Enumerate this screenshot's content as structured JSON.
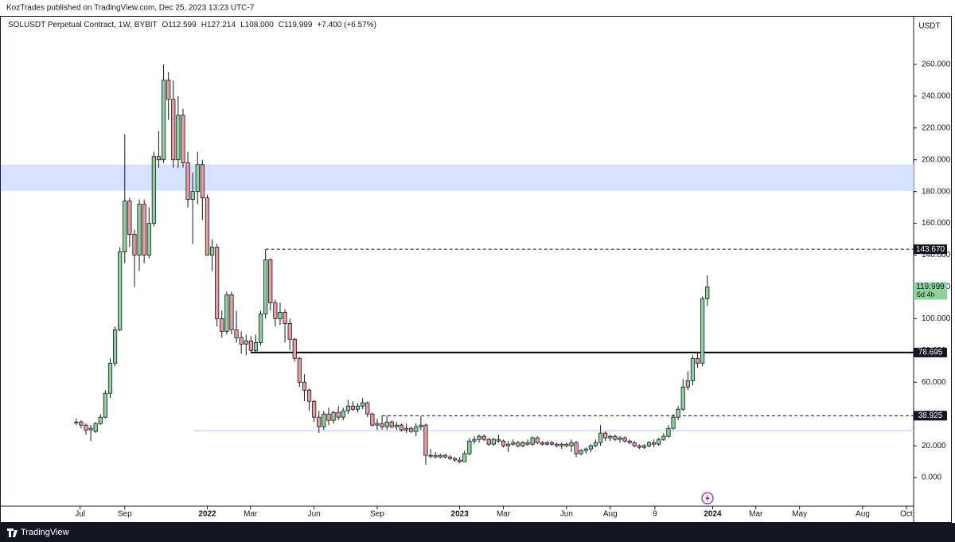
{
  "published": "KozTrades published on TradingView.com, Dec 25, 2023 13:23 UTC-7",
  "brand": "TradingView",
  "chart_data": {
    "type": "candlestick",
    "header": {
      "symbol": "SOLUSDT Perpetual Contract, 1W, BYBIT",
      "open": "O112.599",
      "high": "H127.214",
      "low": "L108.000",
      "close": "C119.999",
      "change": "+7.400 (+6.57%)"
    },
    "y_axis_label": "USDT",
    "categories": [
      null,
      null,
      null,
      null,
      null,
      null,
      null,
      null,
      null,
      null,
      null,
      null,
      null,
      null,
      null,
      null,
      null,
      null,
      null,
      null,
      null,
      null,
      null,
      null,
      null,
      null,
      null,
      null,
      null,
      null,
      null,
      null,
      null,
      null,
      null,
      null,
      null,
      null,
      null,
      null,
      null,
      null,
      null,
      null,
      null,
      null,
      null,
      null,
      null,
      null,
      null,
      null,
      null,
      null,
      null,
      null,
      null,
      null,
      null,
      null,
      null,
      null,
      null,
      null,
      null,
      null,
      null,
      null,
      null,
      null,
      null,
      null,
      null,
      null,
      null,
      null,
      null,
      null,
      null,
      null,
      null,
      null,
      null,
      null,
      null,
      null,
      null,
      null,
      null,
      null,
      null,
      null,
      null,
      null,
      null,
      null,
      null,
      null,
      null,
      null,
      null,
      null,
      null,
      null,
      null,
      null,
      null,
      null,
      null,
      null,
      null,
      null,
      null,
      null,
      null,
      null,
      null,
      null,
      null,
      null,
      null,
      null,
      null,
      null,
      null,
      null,
      null,
      null,
      null,
      null,
      null
    ],
    "open": [
      35,
      35,
      33,
      30,
      29,
      34,
      38,
      53,
      72,
      93,
      142,
      174,
      153,
      140,
      172,
      140,
      160,
      202,
      200,
      250,
      238,
      200,
      228,
      198,
      175,
      180,
      197,
      176,
      140,
      145,
      100,
      92,
      115,
      93,
      88,
      84,
      86,
      80,
      85,
      103,
      137,
      110,
      100,
      104,
      97,
      87,
      75,
      60,
      55,
      48,
      38,
      32,
      40,
      36,
      41,
      38,
      42,
      45,
      43,
      45,
      47,
      40,
      33,
      34,
      32,
      35,
      32,
      33,
      30,
      31,
      29,
      32,
      33,
      14,
      14,
      13,
      14,
      13,
      12,
      11,
      10,
      15,
      23,
      24,
      26,
      24,
      21,
      24,
      23,
      20,
      21,
      22,
      20,
      22,
      21,
      25,
      22,
      21,
      22,
      21,
      20,
      21,
      20,
      22,
      15,
      17,
      18,
      20,
      22,
      28,
      25,
      26,
      24,
      25,
      23,
      22,
      20,
      19,
      20,
      22,
      21,
      24,
      26,
      31,
      38,
      43,
      57,
      61,
      75,
      72,
      112.599
    ],
    "high": [
      37,
      36,
      34,
      33,
      35,
      40,
      55,
      75,
      95,
      145,
      216,
      176,
      156,
      175,
      175,
      170,
      205,
      218,
      260,
      255,
      250,
      240,
      232,
      205,
      192,
      205,
      200,
      178,
      150,
      147,
      105,
      117,
      117,
      105,
      92,
      90,
      89,
      90,
      105,
      143.67,
      138,
      112,
      110,
      106,
      100,
      88,
      76,
      65,
      56,
      49,
      42,
      42,
      44,
      42,
      45,
      44,
      49,
      48,
      47,
      50,
      48,
      41,
      37,
      38.925,
      39,
      36,
      35,
      34,
      34,
      32,
      34,
      38.5,
      34,
      18,
      16,
      15,
      15,
      14,
      13,
      13,
      17,
      25,
      26,
      27,
      27,
      25,
      25,
      27,
      24,
      23,
      24,
      23,
      23,
      24,
      26,
      26,
      23,
      23,
      23,
      22,
      22,
      22,
      24,
      23,
      18,
      19,
      21,
      24,
      33,
      29,
      27,
      27,
      26,
      26,
      24,
      23,
      21,
      21,
      23,
      24,
      25,
      28,
      33,
      40,
      45,
      62,
      67,
      77,
      79,
      114,
      127.214
    ],
    "low": [
      33,
      31,
      27,
      23,
      28,
      33,
      37,
      50,
      70,
      92,
      135,
      145,
      120,
      130,
      135,
      138,
      158,
      195,
      198,
      225,
      195,
      195,
      195,
      170,
      147,
      172,
      162,
      140,
      130,
      95,
      88,
      90,
      90,
      85,
      78,
      77,
      78,
      79,
      83,
      100,
      105,
      95,
      96,
      85,
      80,
      73,
      57,
      48,
      42,
      35,
      28,
      30,
      33,
      34,
      36,
      36,
      40,
      42,
      41,
      43,
      38,
      32,
      30,
      30,
      30,
      31,
      30,
      29,
      28,
      28,
      26,
      30,
      8,
      12,
      12,
      12,
      12,
      11,
      10,
      9,
      10,
      14,
      21,
      22,
      23,
      20,
      20,
      22,
      19,
      16,
      20,
      19,
      19,
      20,
      20,
      21,
      20,
      20,
      20,
      19,
      18,
      19,
      16,
      13,
      14,
      15,
      16,
      19,
      20,
      23,
      23,
      23,
      22,
      22,
      21,
      19,
      18,
      18,
      19,
      19,
      20,
      23,
      25,
      30,
      36,
      42,
      55,
      58,
      69,
      70,
      108
    ],
    "close": [
      35,
      33,
      30,
      31,
      34,
      38,
      53,
      72,
      93,
      142,
      174,
      153,
      140,
      172,
      140,
      160,
      202,
      200,
      250,
      238,
      200,
      228,
      198,
      175,
      180,
      197,
      176,
      140,
      145,
      100,
      92,
      115,
      93,
      88,
      84,
      86,
      80,
      85,
      103,
      137,
      110,
      100,
      104,
      97,
      87,
      75,
      60,
      55,
      48,
      38,
      32,
      40,
      36,
      41,
      38,
      42,
      45,
      43,
      45,
      47,
      40,
      33,
      34,
      32,
      35,
      32,
      33,
      30,
      31,
      29,
      32,
      33,
      14,
      14,
      13,
      14,
      13,
      12,
      11,
      10,
      15,
      23,
      24,
      26,
      24,
      21,
      24,
      23,
      20,
      21,
      22,
      20,
      22,
      21,
      25,
      22,
      21,
      22,
      21,
      20,
      21,
      20,
      22,
      15,
      17,
      18,
      20,
      22,
      28,
      25,
      26,
      24,
      25,
      23,
      22,
      20,
      19,
      20,
      22,
      21,
      24,
      26,
      31,
      38,
      43,
      57,
      61,
      75,
      72,
      112.599,
      119.999
    ],
    "up_color": "#8ed19a",
    "down_color": "#eb9c9c",
    "ylim": [
      -18,
      290
    ],
    "yticks": [
      {
        "value": 0,
        "label": "0.000"
      },
      {
        "value": 20,
        "label": "20.000"
      },
      {
        "value": 40,
        "label": "40.000"
      },
      {
        "value": 60,
        "label": "60.000"
      },
      {
        "value": 80,
        "label": "80.000"
      },
      {
        "value": 100,
        "label": "100.000"
      },
      {
        "value": 120,
        "label": "120.000"
      },
      {
        "value": 140,
        "label": "140.000"
      },
      {
        "value": 160,
        "label": "160.000"
      },
      {
        "value": 180,
        "label": "180.000"
      },
      {
        "value": 200,
        "label": "200.000"
      },
      {
        "value": 220,
        "label": "220.000"
      },
      {
        "value": 240,
        "label": "240.000"
      },
      {
        "value": 260,
        "label": "260.000"
      }
    ],
    "xlim": [
      -15.7,
      172.5
    ],
    "xticks": [
      {
        "value": 0.8,
        "label": "Jul"
      },
      {
        "value": 10,
        "label": "Sep"
      },
      {
        "value": 27,
        "label": "2022"
      },
      {
        "value": 35.9,
        "label": "Mar"
      },
      {
        "value": 49,
        "label": "Jun"
      },
      {
        "value": 62,
        "label": "Sep"
      },
      {
        "value": 79,
        "label": "2023"
      },
      {
        "value": 88,
        "label": "Mar"
      },
      {
        "value": 101,
        "label": "Jun"
      },
      {
        "value": 110,
        "label": "Aug"
      },
      {
        "value": 119.2,
        "label": "9"
      },
      {
        "value": 131.1,
        "label": "2024"
      },
      {
        "value": 140,
        "label": "Mar"
      },
      {
        "value": 149,
        "label": "May"
      },
      {
        "value": 162,
        "label": "Aug"
      },
      {
        "value": 171,
        "label": "Oct"
      }
    ],
    "zone": {
      "from": 180.5,
      "to": 197,
      "color": "#d6e2ff"
    },
    "hlines": [
      {
        "value": 143.67,
        "label": "143.670",
        "style": "dashed",
        "start": 39,
        "color": "#131722"
      },
      {
        "value": 78.695,
        "label": "78.695",
        "style": "solid",
        "start": 36,
        "color": "#000000"
      },
      {
        "value": 38.925,
        "label": "38.925",
        "style": "dashed",
        "start": 63,
        "color": "#131722"
      },
      {
        "value": 29.5,
        "style": "solid",
        "start": 24,
        "color": "#c9d9f0"
      }
    ],
    "last_price": {
      "value": 119.999,
      "label": "119.999",
      "countdown": "6d 4h",
      "color": "#8ed19a"
    }
  }
}
